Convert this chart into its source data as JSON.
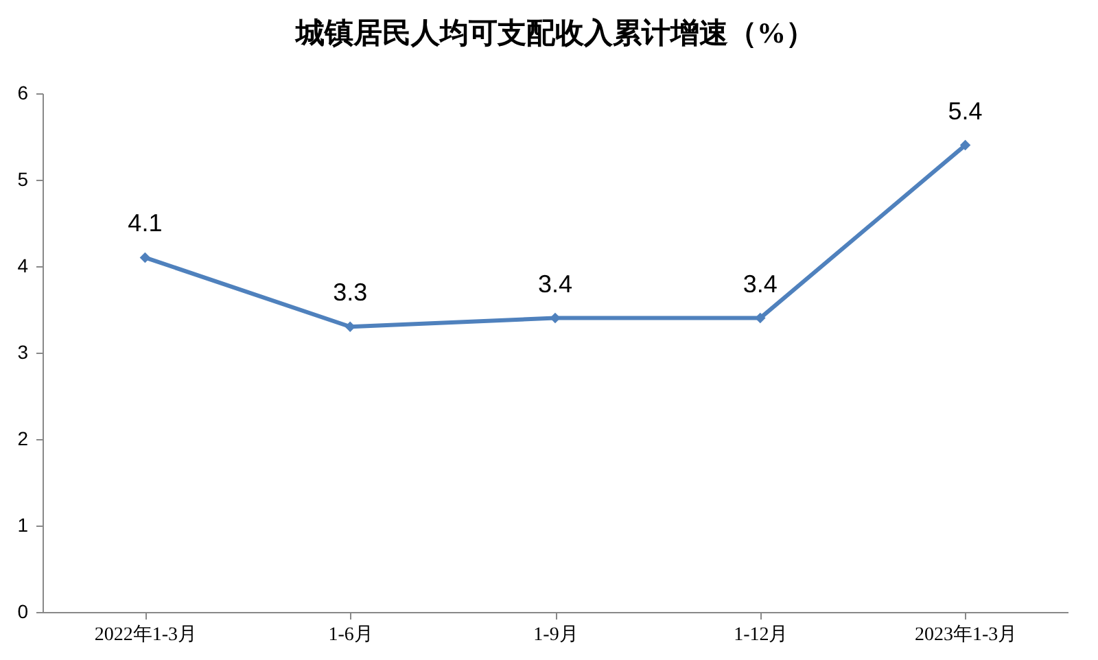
{
  "chart_data": {
    "type": "line",
    "title": "城镇居民人均可支配收入累计增速（%）",
    "categories": [
      "2022年1-3月",
      "1-6月",
      "1-9月",
      "1-12月",
      "2023年1-3月"
    ],
    "series": [
      {
        "color": "#4f81bd",
        "values": [
          4.1,
          3.3,
          3.4,
          3.4,
          5.4
        ]
      }
    ],
    "ylim": [
      0,
      6
    ],
    "yticks": [
      0,
      1,
      2,
      3,
      4,
      5,
      6
    ],
    "grid": false,
    "legend": false,
    "marker": "diamond",
    "line_style": "solid",
    "data_labels": true
  }
}
